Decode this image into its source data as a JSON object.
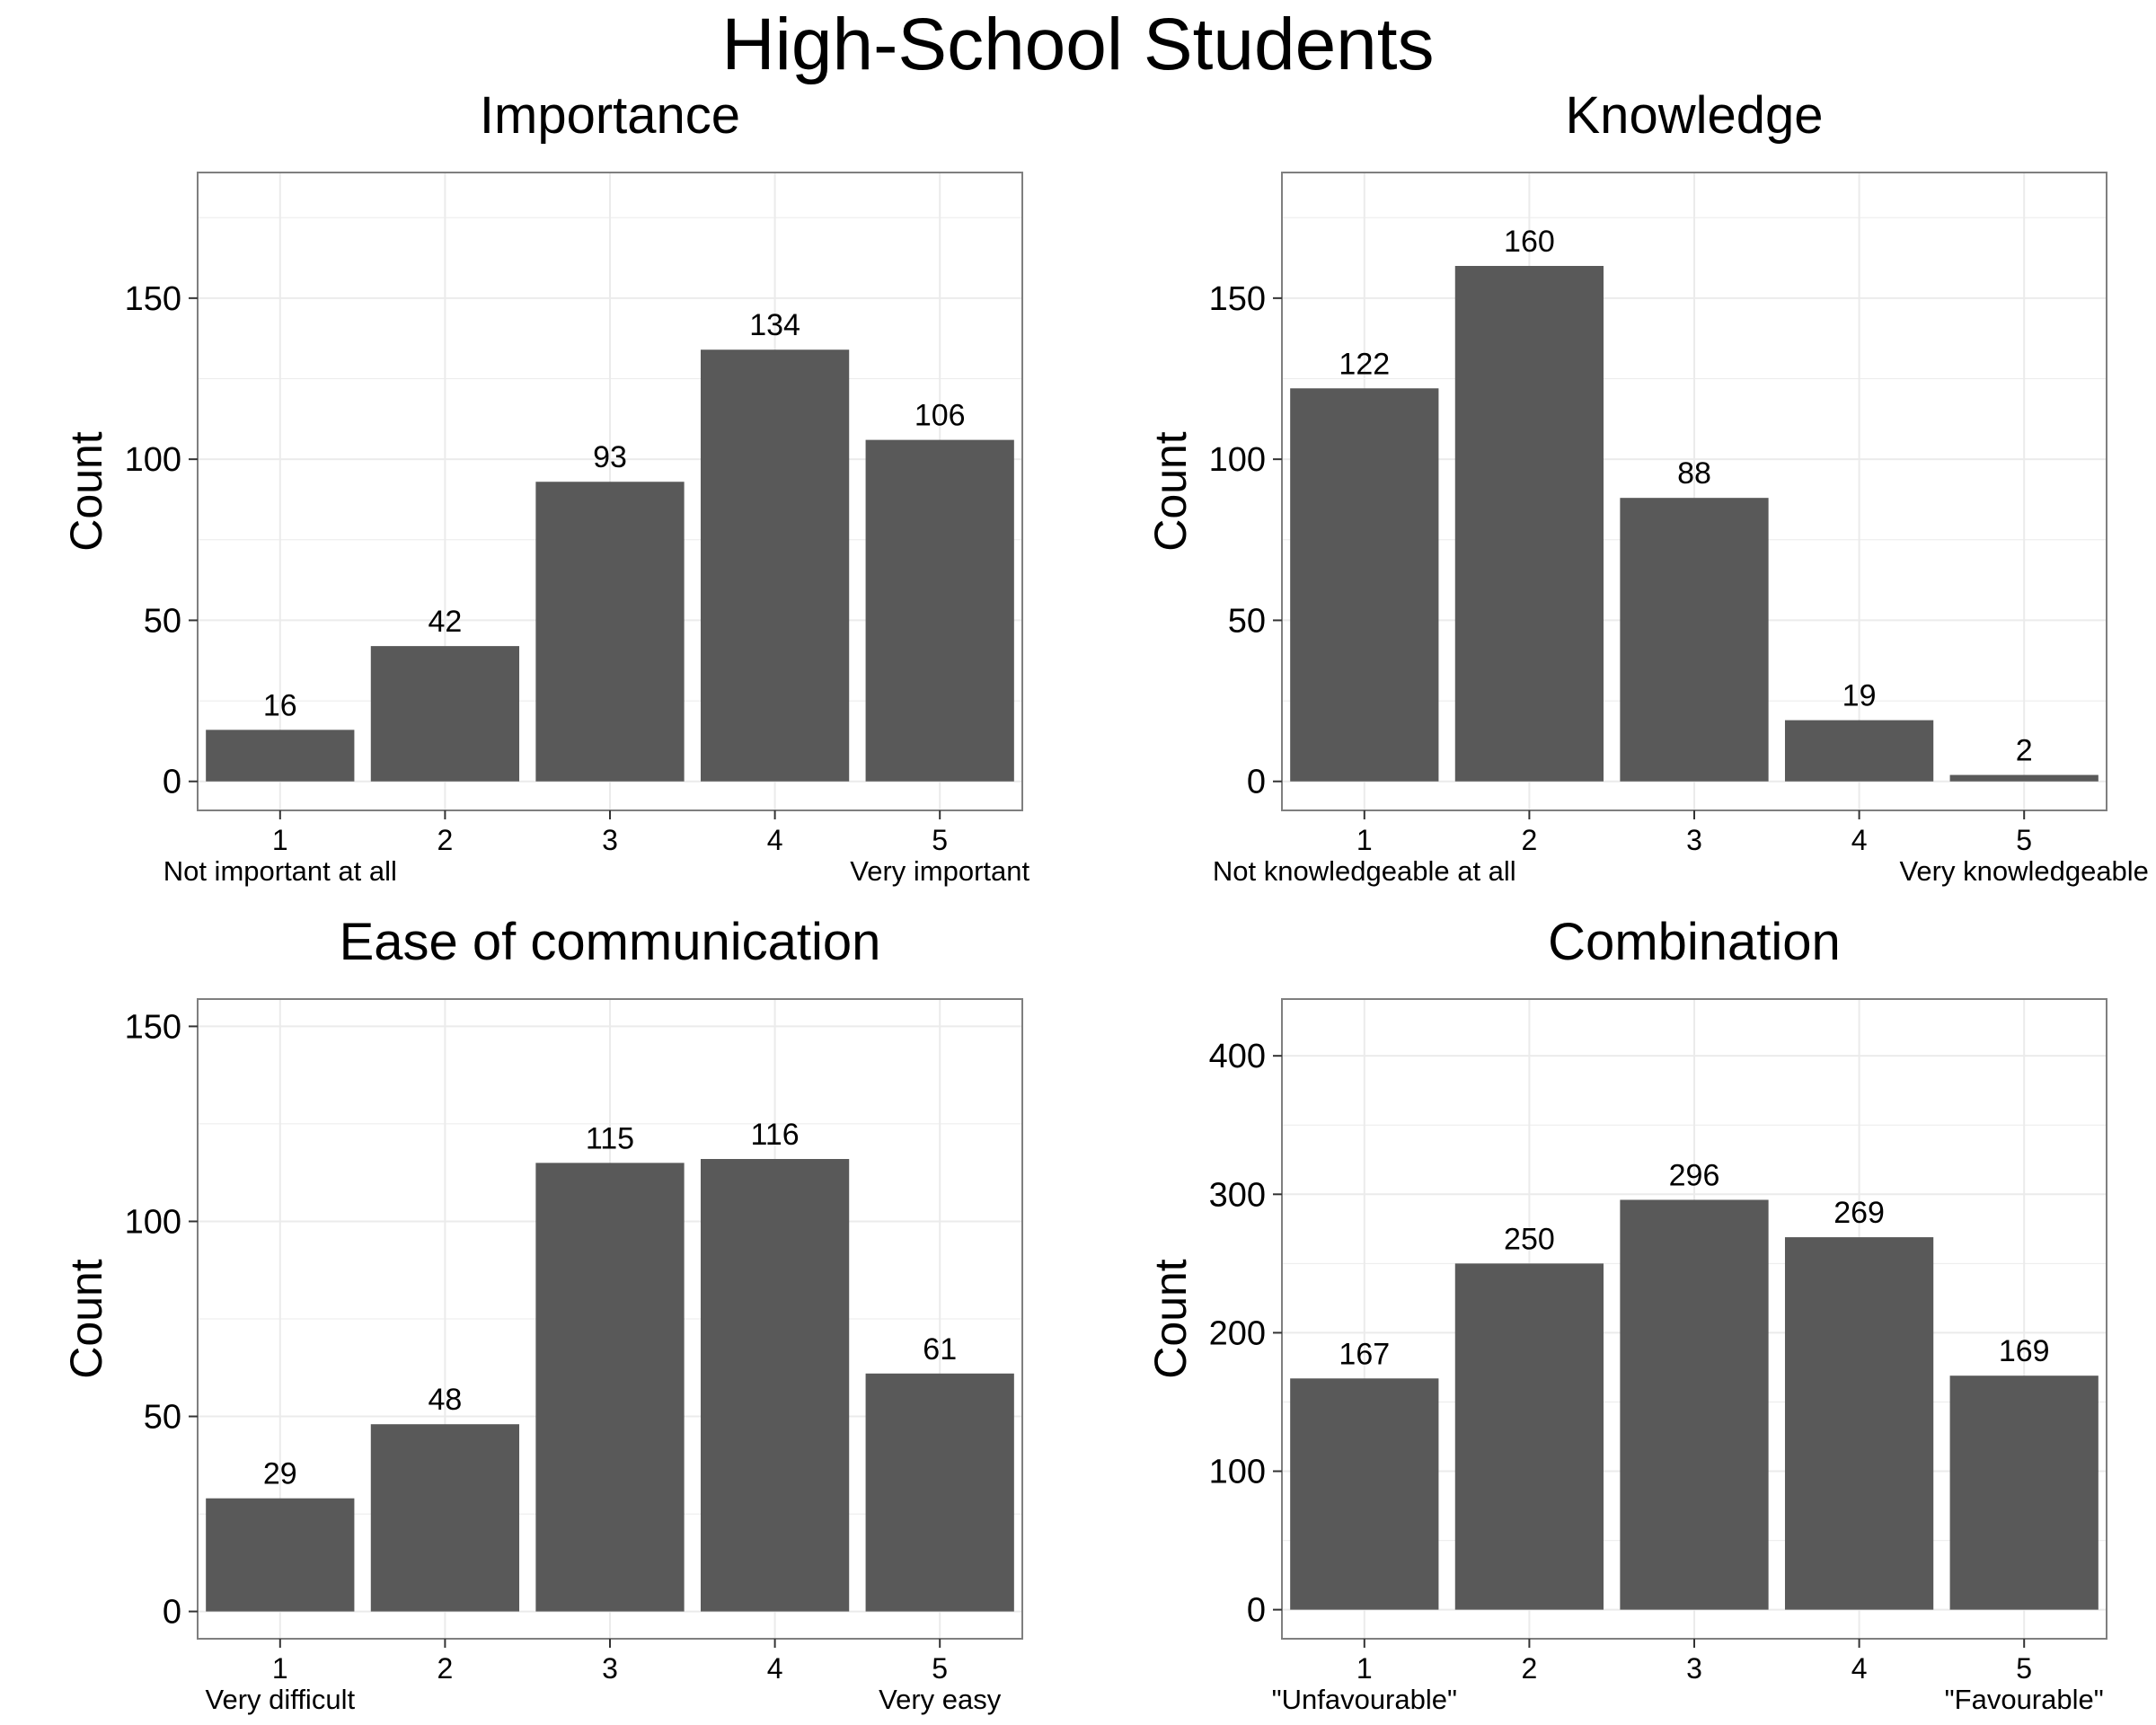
{
  "title": "High-School Students",
  "colors": {
    "bar": "#595959",
    "grid": "#ebebeb",
    "panel_border": "#7f7f7f",
    "tick": "#333333",
    "text": "#000000"
  },
  "chart_data": [
    {
      "type": "bar",
      "title": "Importance",
      "categories": [
        "1",
        "2",
        "3",
        "4",
        "5"
      ],
      "values": [
        16,
        42,
        93,
        134,
        106
      ],
      "data_labels": [
        "16",
        "42",
        "93",
        "134",
        "106"
      ],
      "ylabel": "Count",
      "xlabel": "",
      "yticks": [
        0,
        50,
        100,
        150
      ],
      "ylim": [
        -9,
        189
      ],
      "low_label": "Not important at all",
      "high_label": "Very important",
      "grid": true
    },
    {
      "type": "bar",
      "title": "Knowledge",
      "categories": [
        "1",
        "2",
        "3",
        "4",
        "5"
      ],
      "values": [
        122,
        160,
        88,
        19,
        2
      ],
      "data_labels": [
        "122",
        "160",
        "88",
        "19",
        "2"
      ],
      "ylabel": "Count",
      "xlabel": "",
      "yticks": [
        0,
        50,
        100,
        150
      ],
      "ylim": [
        -9,
        189
      ],
      "low_label": "Not knowledgeable at all",
      "high_label": "Very knowledgeable",
      "grid": true
    },
    {
      "type": "bar",
      "title": "Ease of communication",
      "categories": [
        "1",
        "2",
        "3",
        "4",
        "5"
      ],
      "values": [
        29,
        48,
        115,
        116,
        61
      ],
      "data_labels": [
        "29",
        "48",
        "115",
        "116",
        "61"
      ],
      "ylabel": "Count",
      "xlabel": "",
      "yticks": [
        0,
        50,
        100,
        150
      ],
      "ylim": [
        -7,
        157
      ],
      "low_label": "Very difficult",
      "high_label": "Very easy",
      "grid": true
    },
    {
      "type": "bar",
      "title": "Combination",
      "categories": [
        "1",
        "2",
        "3",
        "4",
        "5"
      ],
      "values": [
        167,
        250,
        296,
        269,
        169
      ],
      "data_labels": [
        "167",
        "250",
        "296",
        "269",
        "169"
      ],
      "ylabel": "Count",
      "xlabel": "",
      "yticks": [
        0,
        100,
        200,
        300,
        400
      ],
      "ylim": [
        -21,
        441
      ],
      "low_label": "\"Unfavourable\"",
      "high_label": "\"Favourable\"",
      "grid": true
    }
  ]
}
